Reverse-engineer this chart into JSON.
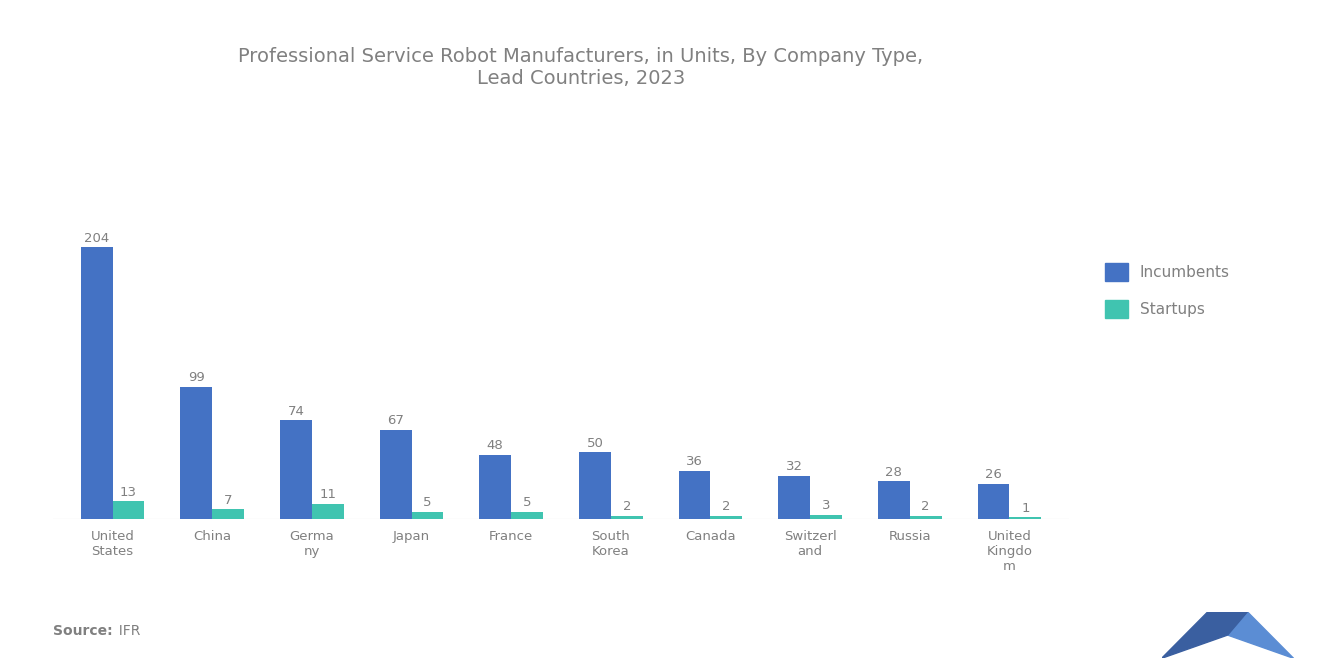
{
  "title": "Professional Service Robot Manufacturers, in Units, By Company Type,\nLead Countries, 2023",
  "title_fontsize": 14,
  "background_color": "#ffffff",
  "categories": [
    "United\nStates",
    "China",
    "Germa\nny",
    "Japan",
    "France",
    "South\nKorea",
    "Canada",
    "Switzerl\nand",
    "Russia",
    "United\nKingdo\nm"
  ],
  "incumbents": [
    204,
    99,
    74,
    67,
    48,
    50,
    36,
    32,
    28,
    26
  ],
  "startups": [
    13,
    7,
    11,
    5,
    5,
    2,
    2,
    3,
    2,
    1
  ],
  "incumbents_color": "#4472c4",
  "startups_color": "#40c4b0",
  "legend_incumbents": "Incumbents",
  "legend_startups": "Startups",
  "source_bold": "Source:",
  "source_text": "  IFR",
  "text_color": "#808080",
  "bar_width": 0.32,
  "ylim": [
    0,
    240
  ]
}
